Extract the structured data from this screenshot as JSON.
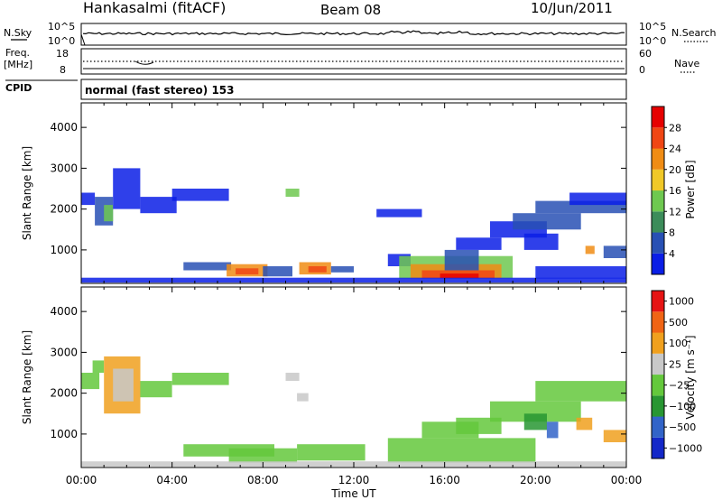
{
  "header": {
    "station": "Hankasalmi (fitACF)",
    "beam": "Beam 08",
    "date": "10/Jun/2011"
  },
  "noise_panel": {
    "left_label": "N.Sky",
    "right_label": "N.Search",
    "tick_top": "10^5",
    "tick_bottom": "10^0"
  },
  "freq_panel": {
    "left_label_line1": "Freq.",
    "left_label_line2": "[MHz]",
    "left_ticks": [
      "18",
      "8"
    ],
    "right_label": "Nave",
    "right_ticks": [
      "60",
      "0"
    ]
  },
  "cpid": {
    "label": "CPID",
    "value": "normal (fast stereo) 153"
  },
  "colors": {
    "power_scale": [
      "#0a1ee6",
      "#2850b4",
      "#3c8c5a",
      "#6ec850",
      "#f0c828",
      "#f08c14",
      "#f04614",
      "#e60000"
    ],
    "velocity_scale": [
      "#1428c8",
      "#3264c8",
      "#289632",
      "#64c83c",
      "#c8c8c8",
      "#f0a01e",
      "#f06414",
      "#e61414"
    ]
  },
  "chart_data": [
    {
      "type": "heatmap",
      "name": "power",
      "ylabel": "Slant Range [km]",
      "ylim": [
        180,
        4600
      ],
      "yticks": [
        "1000",
        "2000",
        "3000",
        "4000"
      ],
      "xlim": [
        0,
        24
      ],
      "colorbar": {
        "label": "Power [dB]",
        "ticks": [
          "4",
          "8",
          "12",
          "16",
          "20",
          "24",
          "28"
        ]
      },
      "patches": [
        {
          "t": [
            0.0,
            0.6
          ],
          "r": [
            2100,
            2400
          ],
          "level": 1
        },
        {
          "t": [
            0.6,
            1.4
          ],
          "r": [
            1600,
            2300
          ],
          "level": 2
        },
        {
          "t": [
            1.0,
            1.4
          ],
          "r": [
            1700,
            2100
          ],
          "level": 4
        },
        {
          "t": [
            1.4,
            2.6
          ],
          "r": [
            2000,
            3000
          ],
          "level": 1
        },
        {
          "t": [
            2.6,
            4.2
          ],
          "r": [
            1900,
            2300
          ],
          "level": 1
        },
        {
          "t": [
            4.0,
            6.5
          ],
          "r": [
            2200,
            2500
          ],
          "level": 1
        },
        {
          "t": [
            4.5,
            6.6
          ],
          "r": [
            500,
            700
          ],
          "level": 2
        },
        {
          "t": [
            6.4,
            8.2
          ],
          "r": [
            350,
            650
          ],
          "level": 6
        },
        {
          "t": [
            6.8,
            7.8
          ],
          "r": [
            400,
            550
          ],
          "level": 7
        },
        {
          "t": [
            8.0,
            9.3
          ],
          "r": [
            350,
            600
          ],
          "level": 2
        },
        {
          "t": [
            9.0,
            9.6
          ],
          "r": [
            2300,
            2500
          ],
          "level": 4
        },
        {
          "t": [
            9.6,
            11.0
          ],
          "r": [
            400,
            700
          ],
          "level": 6
        },
        {
          "t": [
            10.0,
            10.8
          ],
          "r": [
            450,
            600
          ],
          "level": 7
        },
        {
          "t": [
            11.0,
            12.0
          ],
          "r": [
            450,
            600
          ],
          "level": 2
        },
        {
          "t": [
            13.0,
            15.0
          ],
          "r": [
            1800,
            2000
          ],
          "level": 1
        },
        {
          "t": [
            13.5,
            14.5
          ],
          "r": [
            600,
            900
          ],
          "level": 1
        },
        {
          "t": [
            14.0,
            19.0
          ],
          "r": [
            300,
            850
          ],
          "level": 4
        },
        {
          "t": [
            14.5,
            18.5
          ],
          "r": [
            300,
            650
          ],
          "level": 6
        },
        {
          "t": [
            15.0,
            18.2
          ],
          "r": [
            300,
            500
          ],
          "level": 7
        },
        {
          "t": [
            15.8,
            17.5
          ],
          "r": [
            300,
            420
          ],
          "level": 8
        },
        {
          "t": [
            16.0,
            17.5
          ],
          "r": [
            500,
            1000
          ],
          "level": 2
        },
        {
          "t": [
            16.5,
            18.5
          ],
          "r": [
            1000,
            1300
          ],
          "level": 1
        },
        {
          "t": [
            18.0,
            20.5
          ],
          "r": [
            1300,
            1700
          ],
          "level": 1
        },
        {
          "t": [
            19.0,
            22.0
          ],
          "r": [
            1500,
            1900
          ],
          "level": 2
        },
        {
          "t": [
            20.0,
            24.0
          ],
          "r": [
            1900,
            2200
          ],
          "level": 2
        },
        {
          "t": [
            21.5,
            24.0
          ],
          "r": [
            2100,
            2400
          ],
          "level": 1
        },
        {
          "t": [
            19.5,
            21.0
          ],
          "r": [
            1000,
            1400
          ],
          "level": 1
        },
        {
          "t": [
            22.2,
            22.6
          ],
          "r": [
            900,
            1100
          ],
          "level": 6
        },
        {
          "t": [
            23.0,
            24.0
          ],
          "r": [
            800,
            1100
          ],
          "level": 2
        },
        {
          "t": [
            0.0,
            24.0
          ],
          "r": [
            200,
            320
          ],
          "level": 1
        },
        {
          "t": [
            20.0,
            24.0
          ],
          "r": [
            300,
            600
          ],
          "level": 1
        }
      ]
    },
    {
      "type": "heatmap",
      "name": "velocity",
      "ylabel": "Slant Range [km]",
      "ylim": [
        180,
        4600
      ],
      "yticks": [
        "1000",
        "2000",
        "3000",
        "4000"
      ],
      "xlabel": "Time UT",
      "xlim": [
        0,
        24
      ],
      "xticks": [
        "00:00",
        "04:00",
        "08:00",
        "12:00",
        "16:00",
        "20:00",
        "00:00"
      ],
      "colorbar": {
        "label": "Velocity [m s⁻¹]",
        "ticks": [
          "1000",
          "500",
          "100",
          "25",
          "−25",
          "−100",
          "−500",
          "−1000"
        ]
      },
      "patches": [
        {
          "t": [
            0.0,
            0.8
          ],
          "r": [
            2100,
            2500
          ],
          "level": 4
        },
        {
          "t": [
            0.5,
            1.0
          ],
          "r": [
            2500,
            2800
          ],
          "level": 4
        },
        {
          "t": [
            1.0,
            2.6
          ],
          "r": [
            1500,
            2900
          ],
          "level": 6
        },
        {
          "t": [
            1.4,
            2.3
          ],
          "r": [
            1800,
            2600
          ],
          "level": 5
        },
        {
          "t": [
            2.6,
            4.0
          ],
          "r": [
            1900,
            2300
          ],
          "level": 4
        },
        {
          "t": [
            4.0,
            6.5
          ],
          "r": [
            2200,
            2500
          ],
          "level": 4
        },
        {
          "t": [
            4.5,
            8.5
          ],
          "r": [
            450,
            750
          ],
          "level": 4
        },
        {
          "t": [
            6.5,
            9.5
          ],
          "r": [
            300,
            650
          ],
          "level": 4
        },
        {
          "t": [
            9.0,
            9.6
          ],
          "r": [
            2300,
            2500
          ],
          "level": 5
        },
        {
          "t": [
            9.5,
            12.5
          ],
          "r": [
            350,
            750
          ],
          "level": 4
        },
        {
          "t": [
            13.5,
            20.0
          ],
          "r": [
            300,
            900
          ],
          "level": 4
        },
        {
          "t": [
            15.0,
            17.5
          ],
          "r": [
            900,
            1300
          ],
          "level": 4
        },
        {
          "t": [
            16.5,
            18.5
          ],
          "r": [
            1000,
            1400
          ],
          "level": 4
        },
        {
          "t": [
            18.0,
            22.0
          ],
          "r": [
            1300,
            1800
          ],
          "level": 4
        },
        {
          "t": [
            20.0,
            24.0
          ],
          "r": [
            1800,
            2300
          ],
          "level": 4
        },
        {
          "t": [
            19.5,
            20.5
          ],
          "r": [
            1100,
            1500
          ],
          "level": 3
        },
        {
          "t": [
            20.5,
            21.0
          ],
          "r": [
            900,
            1300
          ],
          "level": 2
        },
        {
          "t": [
            21.8,
            22.5
          ],
          "r": [
            1100,
            1400
          ],
          "level": 6
        },
        {
          "t": [
            23.0,
            24.0
          ],
          "r": [
            800,
            1100
          ],
          "level": 6
        },
        {
          "t": [
            0.0,
            24.0
          ],
          "r": [
            200,
            330
          ],
          "level": 5
        },
        {
          "t": [
            9.5,
            10.0
          ],
          "r": [
            1800,
            2000
          ],
          "level": 5
        }
      ]
    }
  ]
}
